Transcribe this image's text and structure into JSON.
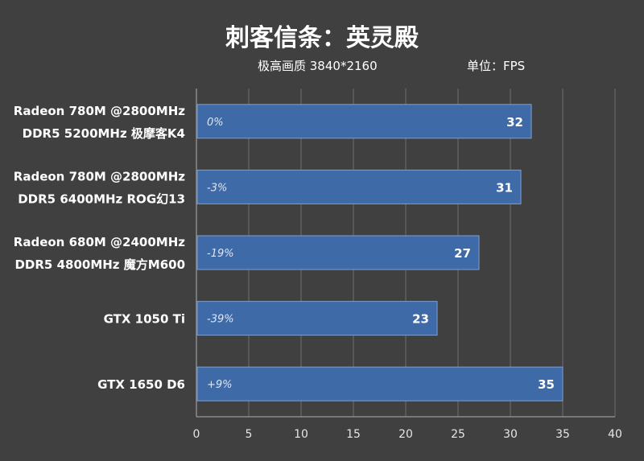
{
  "title": "刺客信条：英灵殿",
  "subtitle": "极高画质 3840*2160",
  "unit": "单位：FPS",
  "colors": {
    "background": "#404040",
    "bar": "#3f6aa8",
    "bar_edge": "#7f9fcf",
    "grid": "#6e6e6e",
    "text": "#ffffff",
    "tick_text": "#e6e6e6"
  },
  "chart_data": {
    "type": "bar",
    "orientation": "horizontal",
    "categories": [
      [
        "Radeon 780M @2800MHz",
        "DDR5 5200MHz 极摩客K4"
      ],
      [
        "Radeon 780M @2800MHz",
        "DDR5 6400MHz ROG幻13"
      ],
      [
        "Radeon 680M @2400MHz",
        "DDR5 4800MHz 魔方M600"
      ],
      [
        "GTX 1050 Ti"
      ],
      [
        "GTX 1650 D6"
      ]
    ],
    "values": [
      32,
      31,
      27,
      23,
      35
    ],
    "value_labels": [
      "32",
      "31",
      "27",
      "23",
      "35"
    ],
    "percent_labels": [
      "0%",
      "-3%",
      "-19%",
      "-39%",
      "+9%"
    ],
    "xlim": [
      0,
      40
    ],
    "xticks": [
      0,
      5,
      10,
      15,
      20,
      25,
      30,
      35,
      40
    ],
    "grid": true
  }
}
